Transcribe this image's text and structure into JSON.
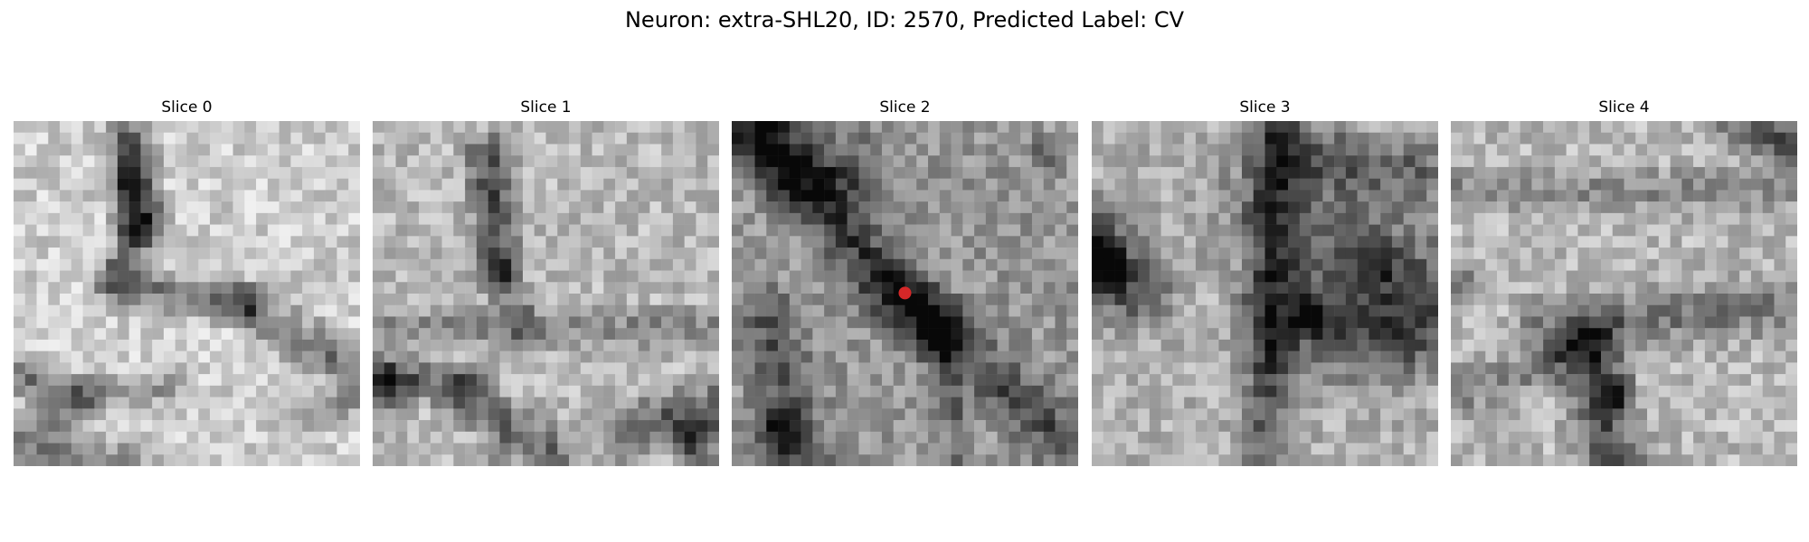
{
  "figure": {
    "title": "Neuron: extra-SHL20, ID: 2570, Predicted Label: CV"
  },
  "slices": [
    {
      "title": "Slice 0",
      "dark_features": "vertical-dark-band-upper-left"
    },
    {
      "title": "Slice 1",
      "dark_features": "vertical-dark-band-upper-center"
    },
    {
      "title": "Slice 2",
      "dark_features": "diagonal-dark-band",
      "marker": {
        "present": true,
        "color": "#d62728"
      }
    },
    {
      "title": "Slice 3",
      "dark_features": "dark-region-right"
    },
    {
      "title": "Slice 4",
      "dark_features": "dark-blob-lower-center"
    }
  ],
  "colormap": "gray",
  "marker_color": "#d62728"
}
